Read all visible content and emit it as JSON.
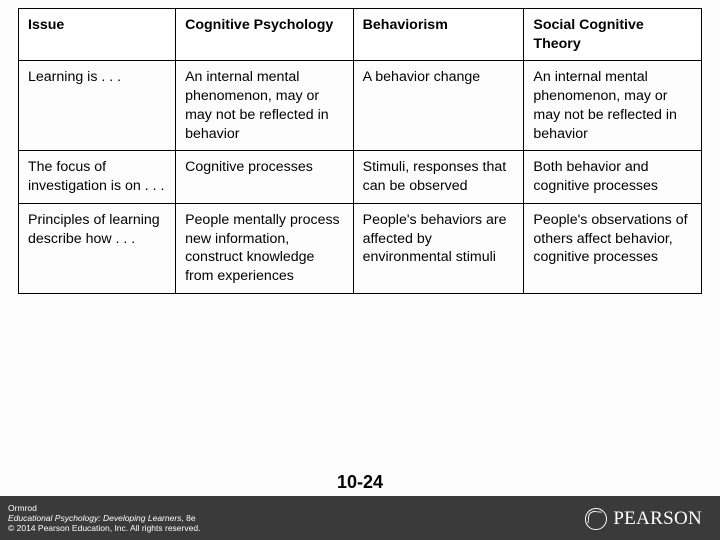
{
  "table": {
    "columns": [
      "Issue",
      "Cognitive Psychology",
      "Behaviorism",
      "Social Cognitive Theory"
    ],
    "col_widths": [
      "23%",
      "26%",
      "25%",
      "26%"
    ],
    "rows": [
      [
        "Learning is . . .",
        "An internal mental phenomenon, may or may not be reflected in behavior",
        "A behavior change",
        "An internal mental phenomenon, may or may not be reflected in behavior"
      ],
      [
        "The focus of investigation is on . . .",
        "Cognitive processes",
        "Stimuli, responses that can be observed",
        "Both behavior and cognitive processes"
      ],
      [
        "Principles of learning describe how . . .",
        "People mentally process new information, construct knowledge from experiences",
        "People's behaviors are affected by environmental stimuli",
        "People's observations of others affect behavior, cognitive processes"
      ]
    ],
    "border_color": "#000000",
    "header_fontweight": "bold",
    "cell_fontsize": 14.2,
    "background_color": "#ffffff"
  },
  "footer": {
    "author": "Ormrod",
    "book_title": "Educational Psychology: Developing Learners",
    "edition_suffix": ", 8e",
    "copyright": "© 2014 Pearson Education, Inc. All rights reserved.",
    "bar_color": "#3a3a3a",
    "text_color": "#ffffff"
  },
  "page_number": "10-24",
  "logo": {
    "text": "PEARSON"
  }
}
